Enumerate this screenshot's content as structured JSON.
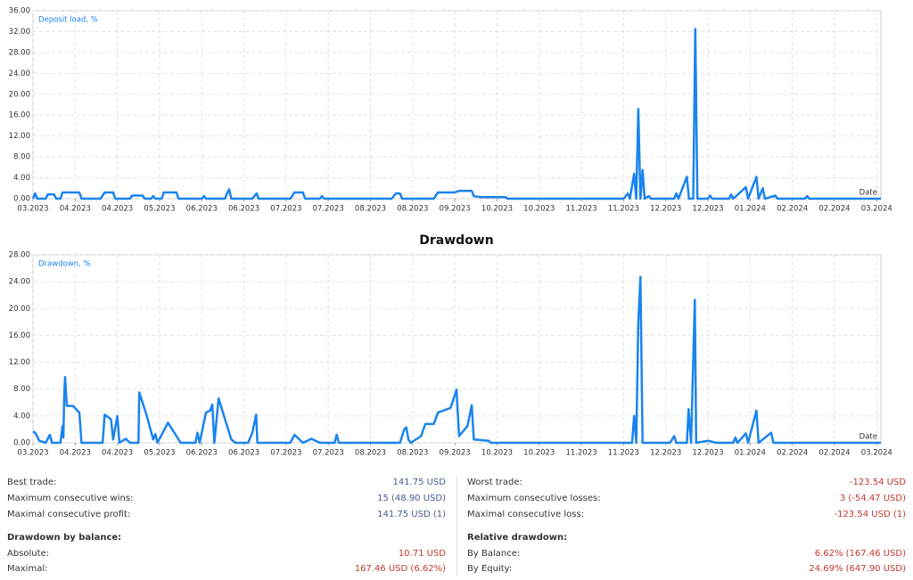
{
  "chart_data": [
    {
      "type": "line",
      "grid": true,
      "x": [
        0,
        0.05,
        0.1,
        0.3,
        0.35,
        0.5,
        0.55,
        0.65,
        0.7,
        1.1,
        1.15,
        1.6,
        1.7,
        1.9,
        1.95,
        2.3,
        2.35,
        2.6,
        2.65,
        2.8,
        2.85,
        2.9,
        3.05,
        3.1,
        3.4,
        3.45,
        4.0,
        4.05,
        4.1,
        4.55,
        4.6,
        4.65,
        4.7,
        5.2,
        5.3,
        5.35,
        6.1,
        6.2,
        6.4,
        6.45,
        6.8,
        6.85,
        6.9,
        8.5,
        8.6,
        8.7,
        8.75,
        9.5,
        9.6,
        10.0,
        10.1,
        10.4,
        10.45,
        10.6,
        11.2,
        11.25,
        14.0,
        14.1,
        14.15,
        14.25,
        14.3,
        14.35,
        14.4,
        14.45,
        14.5,
        14.6,
        14.65,
        15.2,
        15.25,
        15.3,
        15.5,
        15.55,
        15.65,
        15.7,
        15.75,
        16.0,
        16.05,
        16.1,
        16.5,
        16.55,
        16.6,
        16.9,
        16.95,
        17.15,
        17.2,
        17.3,
        17.35,
        17.6,
        17.65,
        18.3,
        18.35,
        18.4,
        20.1
      ],
      "series": [
        {
          "name": "Deposit load, %",
          "color": "#1a84ee",
          "values": [
            0,
            1,
            0,
            0,
            0.8,
            0.8,
            0,
            0,
            1.2,
            1.2,
            0,
            0,
            1.2,
            1.2,
            0,
            0,
            0.6,
            0.6,
            0,
            0,
            0.5,
            0,
            0,
            1.2,
            1.2,
            0,
            0,
            0.5,
            0,
            0,
            1,
            1.8,
            0,
            0,
            1,
            0,
            0,
            1.2,
            1.2,
            0,
            0,
            0.5,
            0,
            0,
            1,
            1,
            0,
            0,
            1.2,
            1.2,
            1.5,
            1.5,
            0.5,
            0.3,
            0.3,
            0,
            0,
            1,
            0,
            4.8,
            0,
            17.2,
            0,
            5.5,
            0,
            0.5,
            0,
            0,
            1,
            0,
            4.2,
            0,
            0,
            32.5,
            0,
            0,
            0.6,
            0,
            0,
            0.8,
            0,
            2.2,
            0,
            4.2,
            0,
            2,
            0,
            0.6,
            0,
            0,
            0.5,
            0,
            0
          ]
        }
      ],
      "x_label": "Date",
      "xlim": [
        0,
        20.1
      ],
      "xticks": [
        {
          "value": 0,
          "label": "03.2023"
        },
        {
          "value": 1,
          "label": "04.2023"
        },
        {
          "value": 2,
          "label": "04.2023"
        },
        {
          "value": 3,
          "label": "05.2023"
        },
        {
          "value": 4,
          "label": "06.2023"
        },
        {
          "value": 5,
          "label": "06.2023"
        },
        {
          "value": 6,
          "label": "07.2023"
        },
        {
          "value": 7,
          "label": "07.2023"
        },
        {
          "value": 8,
          "label": "08.2023"
        },
        {
          "value": 9,
          "label": "08.2023"
        },
        {
          "value": 10,
          "label": "09.2023"
        },
        {
          "value": 11,
          "label": "10.2023"
        },
        {
          "value": 12,
          "label": "10.2023"
        },
        {
          "value": 13,
          "label": "11.2023"
        },
        {
          "value": 14,
          "label": "11.2023"
        },
        {
          "value": 15,
          "label": "12.2023"
        },
        {
          "value": 16,
          "label": "12.2023"
        },
        {
          "value": 17,
          "label": "01.2024"
        },
        {
          "value": 18,
          "label": "02.2024"
        },
        {
          "value": 19,
          "label": "02.2024"
        },
        {
          "value": 20,
          "label": "03.2024"
        }
      ],
      "ylim": [
        0,
        36
      ],
      "yticks": [
        {
          "value": 0,
          "label": "0.00"
        },
        {
          "value": 4,
          "label": "4.00"
        },
        {
          "value": 8,
          "label": "8.00"
        },
        {
          "value": 12,
          "label": "12.00"
        },
        {
          "value": 16,
          "label": "16.00"
        },
        {
          "value": 20,
          "label": "20.00"
        },
        {
          "value": 24,
          "label": "24.00"
        },
        {
          "value": 28,
          "label": "28.00"
        },
        {
          "value": 32,
          "label": "32.00"
        },
        {
          "value": 36,
          "label": "36.00"
        }
      ]
    },
    {
      "type": "line",
      "grid": true,
      "title": "Drawdown",
      "x": [
        0,
        0.05,
        0.15,
        0.3,
        0.4,
        0.45,
        0.65,
        0.7,
        0.72,
        0.74,
        0.76,
        0.8,
        0.95,
        1.1,
        1.15,
        1.65,
        1.7,
        1.85,
        1.9,
        2.0,
        2.05,
        2.2,
        2.3,
        2.5,
        2.52,
        2.7,
        2.85,
        2.9,
        2.95,
        3.2,
        3.4,
        3.5,
        3.85,
        3.9,
        3.95,
        4.1,
        4.2,
        4.25,
        4.3,
        4.4,
        4.7,
        4.8,
        5.1,
        5.2,
        5.25,
        5.29,
        5.32,
        5.5,
        6.1,
        6.2,
        6.4,
        6.6,
        6.8,
        7.15,
        7.2,
        7.25,
        8.7,
        8.8,
        8.85,
        8.9,
        8.95,
        9.2,
        9.3,
        9.5,
        9.6,
        9.9,
        10.04,
        10.1,
        10.3,
        10.4,
        10.45,
        10.8,
        10.85,
        14.2,
        14.25,
        14.3,
        14.35,
        14.4,
        14.45,
        15.1,
        15.2,
        15.25,
        15.5,
        15.54,
        15.6,
        15.69,
        15.72,
        16.0,
        16.2,
        16.6,
        16.65,
        16.7,
        16.9,
        16.95,
        17.15,
        17.2,
        17.5,
        17.55,
        20.1
      ],
      "series": [
        {
          "name": "Drawdown, %",
          "color": "#1a84ee",
          "values": [
            1.7,
            1.5,
            0.3,
            0,
            1.2,
            0,
            0,
            2.5,
            0.8,
            7,
            9.8,
            5.5,
            5.5,
            4.5,
            0,
            0,
            4.2,
            3.5,
            0.5,
            4,
            0,
            0.6,
            0,
            0,
            7.5,
            4,
            0.5,
            1.3,
            0,
            3,
            1,
            0,
            0,
            1.5,
            0,
            4.5,
            4.8,
            5.7,
            0,
            6.6,
            0.5,
            0,
            0,
            1.5,
            3,
            4.2,
            0,
            0,
            0,
            1.2,
            0,
            0.6,
            0,
            0,
            1.2,
            0,
            0,
            2,
            2.3,
            0.5,
            0,
            1,
            2.8,
            2.8,
            4.5,
            5.2,
            7.9,
            1,
            2.5,
            5.6,
            0.5,
            0.3,
            0,
            0,
            4,
            0,
            18,
            24.7,
            0,
            0,
            1,
            0,
            0,
            5,
            0,
            21.3,
            0,
            0.3,
            0,
            0,
            0.8,
            0,
            1.4,
            0,
            4.8,
            0,
            1.5,
            0,
            0
          ]
        }
      ],
      "x_label": "Date",
      "xlim": [
        0,
        20.1
      ],
      "xticks": [
        {
          "value": 0,
          "label": "03.2023"
        },
        {
          "value": 1,
          "label": "04.2023"
        },
        {
          "value": 2,
          "label": "04.2023"
        },
        {
          "value": 3,
          "label": "05.2023"
        },
        {
          "value": 4,
          "label": "06.2023"
        },
        {
          "value": 5,
          "label": "06.2023"
        },
        {
          "value": 6,
          "label": "07.2023"
        },
        {
          "value": 7,
          "label": "07.2023"
        },
        {
          "value": 8,
          "label": "08.2023"
        },
        {
          "value": 9,
          "label": "08.2023"
        },
        {
          "value": 10,
          "label": "09.2023"
        },
        {
          "value": 11,
          "label": "10.2023"
        },
        {
          "value": 12,
          "label": "10.2023"
        },
        {
          "value": 13,
          "label": "11.2023"
        },
        {
          "value": 14,
          "label": "11.2023"
        },
        {
          "value": 15,
          "label": "12.2023"
        },
        {
          "value": 16,
          "label": "12.2023"
        },
        {
          "value": 17,
          "label": "01.2024"
        },
        {
          "value": 18,
          "label": "02.2024"
        },
        {
          "value": 19,
          "label": "02.2024"
        },
        {
          "value": 20,
          "label": "03.2024"
        }
      ],
      "ylim": [
        0,
        28
      ],
      "yticks": [
        {
          "value": 0,
          "label": "0.00"
        },
        {
          "value": 4,
          "label": "4.00"
        },
        {
          "value": 8,
          "label": "8.00"
        },
        {
          "value": 12,
          "label": "12.00"
        },
        {
          "value": 16,
          "label": "16.00"
        },
        {
          "value": 20,
          "label": "20.00"
        },
        {
          "value": 24,
          "label": "24.00"
        },
        {
          "value": 28,
          "label": "28.00"
        }
      ]
    }
  ],
  "stats": {
    "left": {
      "rows": [
        {
          "label": "Best trade:",
          "value": "141.75 USD",
          "color": "#4b5a93"
        },
        {
          "label": "Maximum consecutive wins:",
          "value": "15 (48.90 USD)",
          "color": "#4b5a93"
        },
        {
          "label": "Maximal consecutive profit:",
          "value": "141.75 USD (1)",
          "color": "#4b5a93"
        }
      ],
      "section": "Drawdown by balance:",
      "section_rows": [
        {
          "label": "Absolute:",
          "value": "10.71 USD",
          "color": "#c0392b"
        },
        {
          "label": "Maximal:",
          "value": "167.46 USD (6.62%)",
          "color": "#c0392b"
        }
      ]
    },
    "right": {
      "rows": [
        {
          "label": "Worst trade:",
          "value": "-123.54 USD",
          "color": "#c0392b"
        },
        {
          "label": "Maximum consecutive losses:",
          "value": "3 (-54.47 USD)",
          "color": "#c0392b"
        },
        {
          "label": "Maximal consecutive loss:",
          "value": "-123.54 USD (1)",
          "color": "#c0392b"
        }
      ],
      "section": "Relative drawdown:",
      "section_rows": [
        {
          "label": "By Balance:",
          "value": "6.62% (167.46 USD)",
          "color": "#c0392b"
        },
        {
          "label": "By Equity:",
          "value": "24.69% (647.90 USD)",
          "color": "#c0392b"
        }
      ]
    }
  }
}
